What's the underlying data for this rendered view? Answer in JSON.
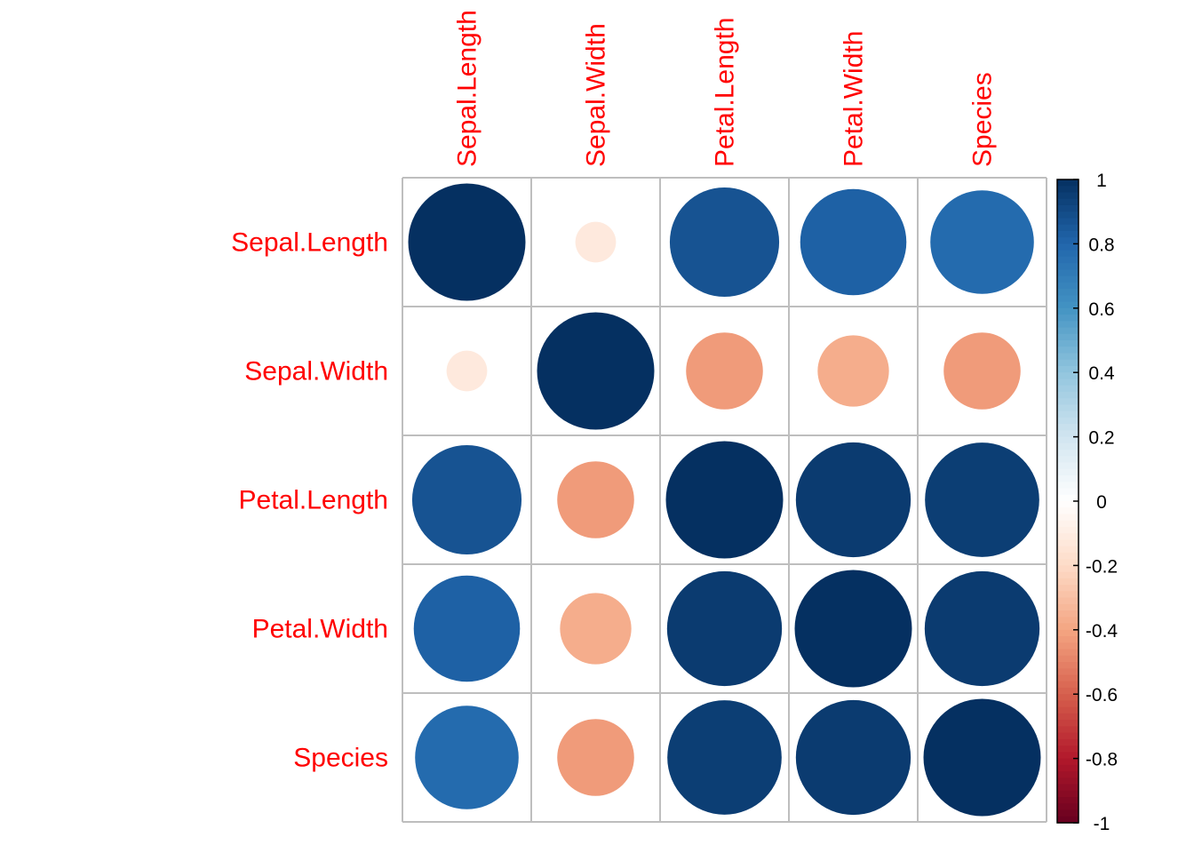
{
  "chart_data": {
    "type": "heatmap",
    "subtype": "correlation-circles",
    "variables": [
      "Sepal.Length",
      "Sepal.Width",
      "Petal.Length",
      "Petal.Width",
      "Species"
    ],
    "matrix": [
      [
        1.0,
        -0.12,
        0.87,
        0.82,
        0.78
      ],
      [
        -0.12,
        1.0,
        -0.43,
        -0.37,
        -0.43
      ],
      [
        0.87,
        -0.43,
        1.0,
        0.96,
        0.95
      ],
      [
        0.82,
        -0.37,
        0.96,
        1.0,
        0.96
      ],
      [
        0.78,
        -0.43,
        0.95,
        0.96,
        1.0
      ]
    ],
    "colorbar": {
      "ticks": [
        "1",
        "0.8",
        "0.6",
        "0.4",
        "0.2",
        "0",
        "-0.2",
        "-0.4",
        "-0.6",
        "-0.8",
        "-1"
      ],
      "range": [
        -1,
        1
      ],
      "colors": {
        "-1": "#67001f",
        "-0.8": "#b2182b",
        "-0.6": "#d6604d",
        "-0.4": "#f4a582",
        "-0.2": "#fddbc7",
        "0": "#ffffff",
        "0.2": "#d1e5f0",
        "0.4": "#92c5de",
        "0.6": "#4393c3",
        "0.8": "#2166ac",
        "1": "#053061"
      }
    },
    "label_color": "#ff0000",
    "grid_color": "#bebebe"
  }
}
